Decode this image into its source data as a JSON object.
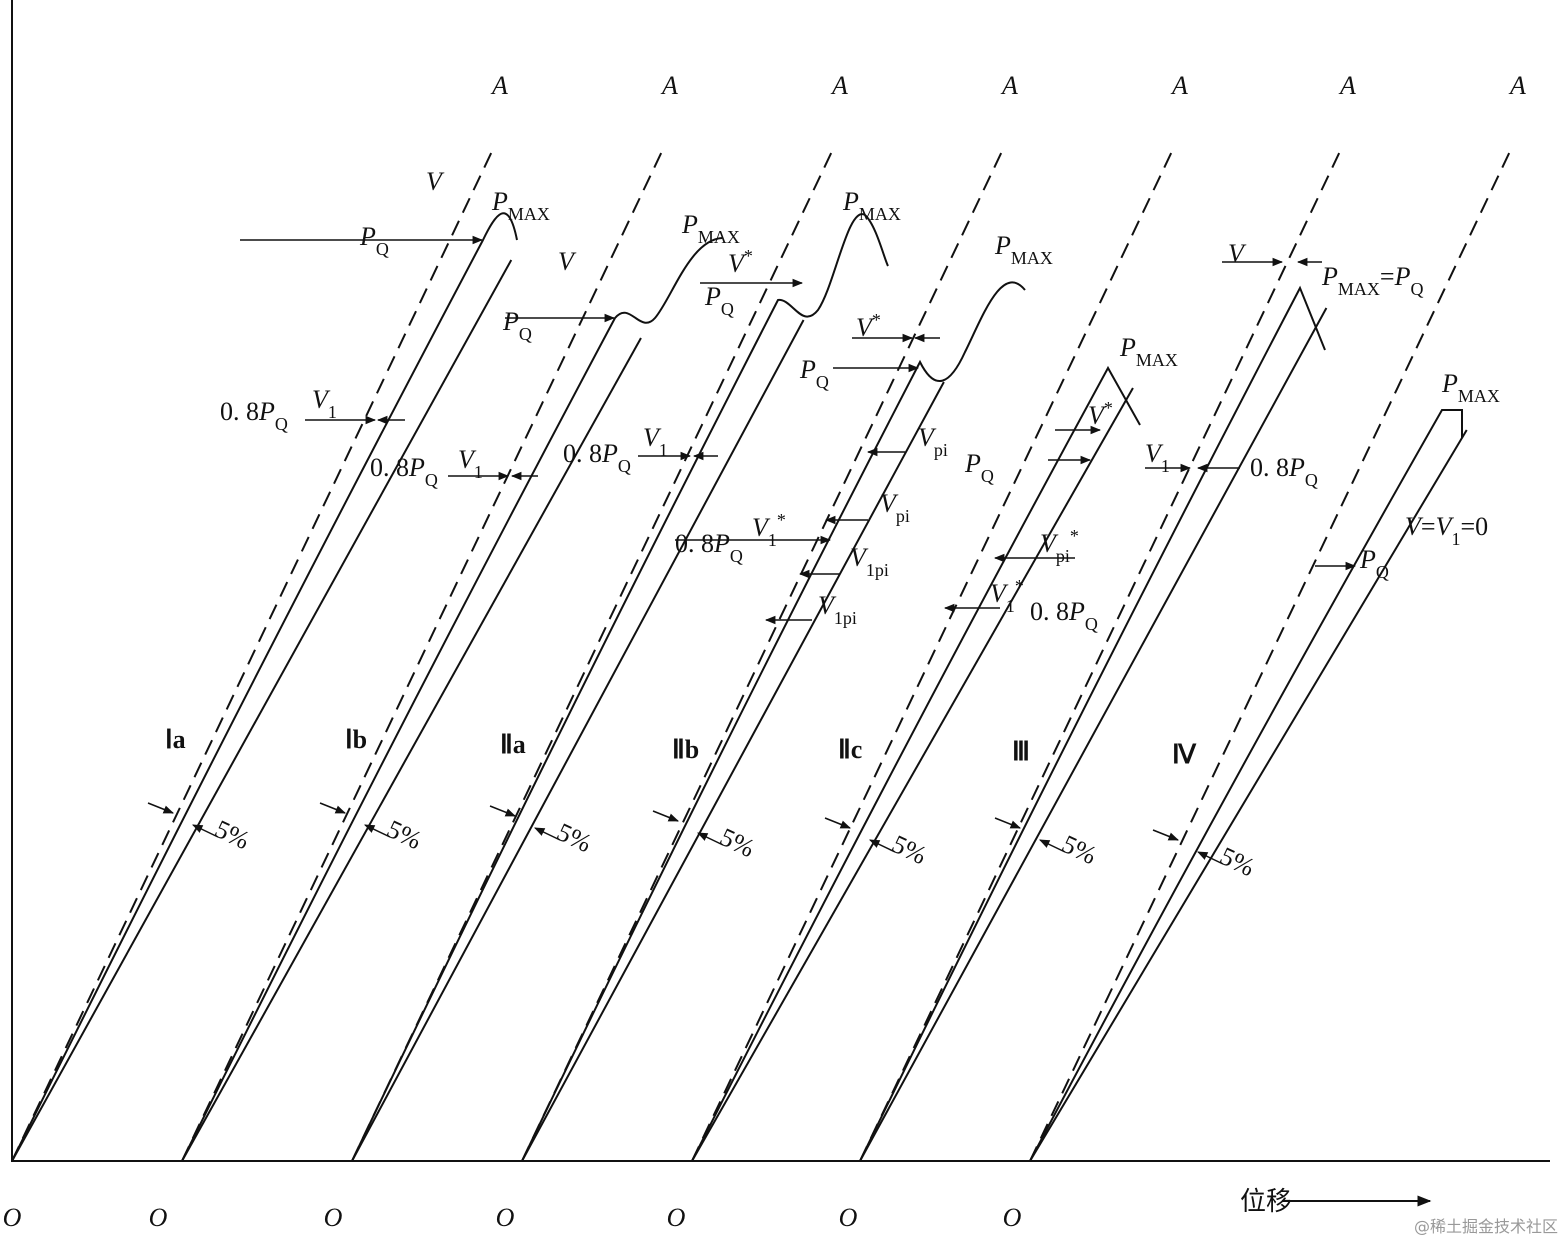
{
  "axis": {
    "label": "位移"
  },
  "watermark": "@稀土掘金技术社区",
  "specimens": [
    {
      "label": "Ⅰa",
      "origin": "O",
      "end": "A",
      "offset": "5%",
      "annotations": [
        {
          "parts": [
            {
              "text": "V"
            }
          ]
        },
        {
          "parts": [
            {
              "text": "P"
            },
            {
              "text": "MAX",
              "pos": "sub"
            }
          ]
        },
        {
          "parts": [
            {
              "text": "P"
            },
            {
              "text": "Q",
              "pos": "sub"
            }
          ]
        },
        {
          "parts": [
            {
              "text": "0. 8"
            },
            {
              "text": "P"
            },
            {
              "text": "Q",
              "pos": "sub"
            }
          ]
        },
        {
          "parts": [
            {
              "text": "V"
            },
            {
              "text": "1",
              "pos": "sub"
            }
          ]
        }
      ]
    },
    {
      "label": "Ⅰb",
      "origin": "O",
      "end": "A",
      "offset": "5%",
      "annotations": [
        {
          "parts": [
            {
              "text": "V"
            }
          ]
        },
        {
          "parts": [
            {
              "text": "P"
            },
            {
              "text": "MAX",
              "pos": "sub"
            }
          ]
        },
        {
          "parts": [
            {
              "text": "P"
            },
            {
              "text": "Q",
              "pos": "sub"
            }
          ]
        },
        {
          "parts": [
            {
              "text": "0. 8"
            },
            {
              "text": "P"
            },
            {
              "text": "Q",
              "pos": "sub"
            }
          ]
        },
        {
          "parts": [
            {
              "text": "V"
            },
            {
              "text": "1",
              "pos": "sub"
            }
          ]
        }
      ]
    },
    {
      "label": "Ⅱa",
      "origin": "O",
      "end": "A",
      "offset": "5%",
      "annotations": [
        {
          "parts": [
            {
              "text": "V"
            },
            {
              "text": "*",
              "pos": "sup"
            }
          ]
        },
        {
          "parts": [
            {
              "text": "P"
            },
            {
              "text": "MAX",
              "pos": "sub"
            }
          ]
        },
        {
          "parts": [
            {
              "text": "P"
            },
            {
              "text": "Q",
              "pos": "sub"
            }
          ]
        },
        {
          "parts": [
            {
              "text": "0. 8"
            },
            {
              "text": "P"
            },
            {
              "text": "Q",
              "pos": "sub"
            }
          ]
        },
        {
          "parts": [
            {
              "text": "V"
            },
            {
              "text": "1",
              "pos": "sub"
            }
          ]
        }
      ]
    },
    {
      "label": "Ⅱb",
      "origin": "O",
      "end": "A",
      "offset": "5%",
      "annotations": [
        {
          "parts": [
            {
              "text": "V"
            },
            {
              "text": "*",
              "pos": "sup"
            }
          ]
        },
        {
          "parts": [
            {
              "text": "P"
            },
            {
              "text": "MAX",
              "pos": "sub"
            }
          ]
        },
        {
          "parts": [
            {
              "text": "P"
            },
            {
              "text": "Q",
              "pos": "sub"
            }
          ]
        },
        {
          "parts": [
            {
              "text": "V"
            },
            {
              "text": "pi",
              "pos": "sub"
            }
          ]
        },
        {
          "parts": [
            {
              "text": "V"
            },
            {
              "text": "pi",
              "pos": "sub"
            }
          ]
        },
        {
          "parts": [
            {
              "text": "0. 8"
            },
            {
              "text": "P"
            },
            {
              "text": "Q",
              "pos": "sub"
            }
          ]
        },
        {
          "parts": [
            {
              "text": "V"
            },
            {
              "text": "1",
              "pos": "sub"
            },
            {
              "text": "*",
              "pos": "sup"
            }
          ]
        },
        {
          "parts": [
            {
              "text": "V"
            },
            {
              "text": "1pi",
              "pos": "sub"
            }
          ]
        },
        {
          "parts": [
            {
              "text": "V"
            },
            {
              "text": "1pi",
              "pos": "sub"
            }
          ]
        }
      ]
    },
    {
      "label": "Ⅱc",
      "origin": "O",
      "end": "A",
      "offset": "5%",
      "annotations": [
        {
          "parts": [
            {
              "text": "P"
            },
            {
              "text": "MAX",
              "pos": "sub"
            }
          ]
        },
        {
          "parts": [
            {
              "text": "V"
            },
            {
              "text": "*",
              "pos": "sup"
            }
          ]
        },
        {
          "parts": [
            {
              "text": "P"
            },
            {
              "text": "Q",
              "pos": "sub"
            }
          ]
        },
        {
          "parts": [
            {
              "text": "V"
            },
            {
              "text": "pi",
              "pos": "sub"
            },
            {
              "text": "*",
              "pos": "sup"
            }
          ]
        },
        {
          "parts": [
            {
              "text": "V"
            },
            {
              "text": "1",
              "pos": "sub"
            },
            {
              "text": "*",
              "pos": "sup"
            }
          ]
        },
        {
          "parts": [
            {
              "text": "0. 8"
            },
            {
              "text": "P"
            },
            {
              "text": "Q",
              "pos": "sub"
            }
          ]
        }
      ]
    },
    {
      "label": "Ⅲ",
      "origin": "O",
      "end": "A",
      "offset": "5%",
      "annotations": [
        {
          "parts": [
            {
              "text": "V"
            }
          ]
        },
        {
          "parts": [
            {
              "text": "P"
            },
            {
              "text": "MAX",
              "pos": "sub"
            },
            {
              "text": "="
            },
            {
              "text": "P"
            },
            {
              "text": "Q",
              "pos": "sub"
            }
          ]
        },
        {
          "parts": [
            {
              "text": "V"
            },
            {
              "text": "1",
              "pos": "sub"
            }
          ]
        },
        {
          "parts": [
            {
              "text": "0. 8"
            },
            {
              "text": "P"
            },
            {
              "text": "Q",
              "pos": "sub"
            }
          ]
        }
      ]
    },
    {
      "label": "Ⅳ",
      "origin": "O",
      "end": "A",
      "offset": "5%",
      "annotations": [
        {
          "parts": [
            {
              "text": "P"
            },
            {
              "text": "MAX",
              "pos": "sub"
            }
          ]
        },
        {
          "parts": [
            {
              "text": "V"
            },
            {
              "text": "="
            },
            {
              "text": "V"
            },
            {
              "text": "1",
              "pos": "sub"
            },
            {
              "text": "=0"
            }
          ]
        },
        {
          "parts": [
            {
              "text": "P"
            },
            {
              "text": "Q",
              "pos": "sub"
            }
          ]
        }
      ]
    }
  ]
}
